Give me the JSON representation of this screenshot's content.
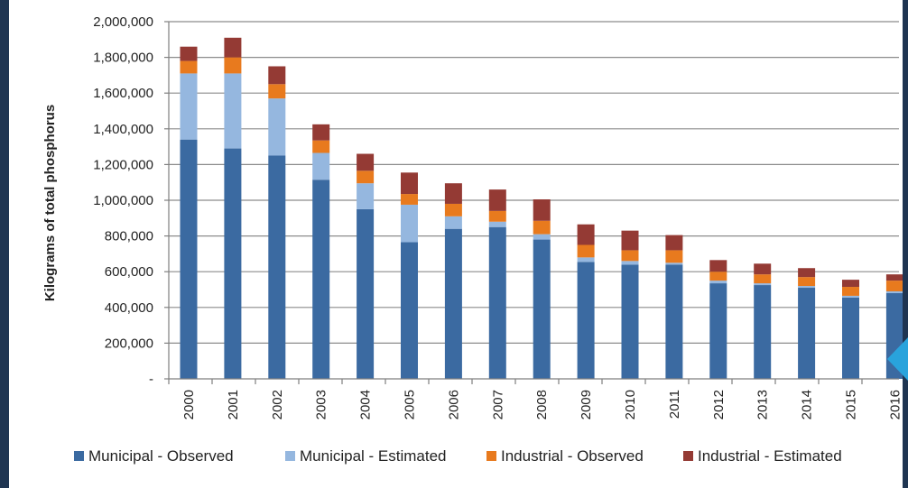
{
  "colors": {
    "municipal_observed": "#3b6aa1",
    "municipal_estimated": "#95b7df",
    "industrial_observed": "#e87a1e",
    "industrial_estimated": "#943a34",
    "background": "#1f3552",
    "gridline": "#8c8c8c"
  },
  "icons": {
    "pointer": "blue-triangle-pointer-icon"
  },
  "chart_data": {
    "type": "bar",
    "stacked": true,
    "title": "",
    "xlabel": "",
    "ylabel": "Kilograms of total phosphorus",
    "ylim": [
      0,
      2000000
    ],
    "yticks": [
      0,
      200000,
      400000,
      600000,
      800000,
      1000000,
      1200000,
      1400000,
      1600000,
      1800000,
      2000000
    ],
    "ytick_labels": [
      "-",
      "200,000",
      "400,000",
      "600,000",
      "800,000",
      "1,000,000",
      "1,200,000",
      "1,400,000",
      "1,600,000",
      "1,800,000",
      "2,000,000"
    ],
    "grid": true,
    "legend_position": "bottom",
    "categories": [
      "2000",
      "2001",
      "2002",
      "2003",
      "2004",
      "2005",
      "2006",
      "2007",
      "2008",
      "2009",
      "2010",
      "2011",
      "2012",
      "2013",
      "2014",
      "2015",
      "2016"
    ],
    "series": [
      {
        "name": "Municipal - Observed",
        "values": [
          1340000,
          1290000,
          1250000,
          1115000,
          950000,
          765000,
          840000,
          850000,
          780000,
          655000,
          640000,
          640000,
          535000,
          525000,
          510000,
          455000,
          480000
        ]
      },
      {
        "name": "Municipal - Estimated",
        "values": [
          370000,
          420000,
          320000,
          150000,
          145000,
          210000,
          70000,
          30000,
          30000,
          25000,
          20000,
          10000,
          15000,
          10000,
          10000,
          10000,
          10000
        ]
      },
      {
        "name": "Industrial - Observed",
        "values": [
          70000,
          90000,
          80000,
          70000,
          70000,
          60000,
          70000,
          60000,
          75000,
          70000,
          60000,
          70000,
          50000,
          50000,
          50000,
          50000,
          60000
        ]
      },
      {
        "name": "Industrial - Estimated",
        "values": [
          80000,
          110000,
          100000,
          90000,
          95000,
          120000,
          115000,
          120000,
          120000,
          115000,
          110000,
          85000,
          65000,
          60000,
          50000,
          40000,
          35000
        ]
      }
    ]
  }
}
